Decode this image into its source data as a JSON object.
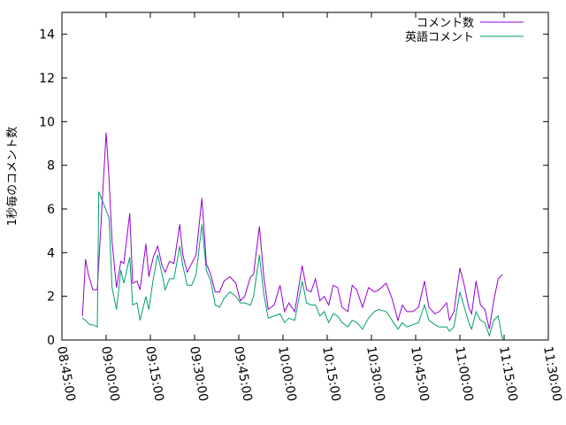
{
  "chart_data": {
    "type": "line",
    "title": "",
    "xlabel": "",
    "ylabel": "1秒毎のコメント数",
    "ylim": [
      0,
      15
    ],
    "xlim": [
      "08:45:00",
      "11:30:00"
    ],
    "grid": false,
    "legend_position": "top-right",
    "y_ticks": [
      "0",
      "2",
      "4",
      "6",
      "8",
      "10",
      "12",
      "14"
    ],
    "x_ticks": [
      "08:45:00",
      "09:00:00",
      "09:15:00",
      "09:30:00",
      "09:45:00",
      "10:00:00",
      "10:15:00",
      "10:30:00",
      "10:45:00",
      "11:00:00",
      "11:15:00",
      "11:30:00"
    ],
    "series": [
      {
        "name": "コメント数",
        "color": "#9400d3",
        "points": [
          [
            "08:52:00",
            1.1
          ],
          [
            "08:53:00",
            3.7
          ],
          [
            "08:54:00",
            3.0
          ],
          [
            "08:55:30",
            2.3
          ],
          [
            "08:57:00",
            2.3
          ],
          [
            "09:00:00",
            9.5
          ],
          [
            "09:01:00",
            7.4
          ],
          [
            "09:02:00",
            4.5
          ],
          [
            "09:03:30",
            2.4
          ],
          [
            "09:05:00",
            3.6
          ],
          [
            "09:06:00",
            3.5
          ],
          [
            "09:08:00",
            5.8
          ],
          [
            "09:09:00",
            2.6
          ],
          [
            "09:10:30",
            2.7
          ],
          [
            "09:11:30",
            2.3
          ],
          [
            "09:13:30",
            4.4
          ],
          [
            "09:14:30",
            2.9
          ],
          [
            "09:16:00",
            3.8
          ],
          [
            "09:17:30",
            4.3
          ],
          [
            "09:19:00",
            3.4
          ],
          [
            "09:20:00",
            3.1
          ],
          [
            "09:21:30",
            3.6
          ],
          [
            "09:23:00",
            3.5
          ],
          [
            "09:25:00",
            5.3
          ],
          [
            "09:26:00",
            3.9
          ],
          [
            "09:27:30",
            3.1
          ],
          [
            "09:29:00",
            3.5
          ],
          [
            "09:30:30",
            3.9
          ],
          [
            "09:32:30",
            6.5
          ],
          [
            "09:34:00",
            3.5
          ],
          [
            "09:35:30",
            3.0
          ],
          [
            "09:37:00",
            2.2
          ],
          [
            "09:38:30",
            2.2
          ],
          [
            "09:40:00",
            2.7
          ],
          [
            "09:42:00",
            2.9
          ],
          [
            "09:44:00",
            2.6
          ],
          [
            "09:45:30",
            1.8
          ],
          [
            "09:47:00",
            2.0
          ],
          [
            "09:49:00",
            2.9
          ],
          [
            "09:50:00",
            3.0
          ],
          [
            "09:52:00",
            5.2
          ],
          [
            "09:53:30",
            2.9
          ],
          [
            "09:55:00",
            1.4
          ],
          [
            "09:57:00",
            1.6
          ],
          [
            "09:59:00",
            2.5
          ],
          [
            "10:00:30",
            1.3
          ],
          [
            "10:02:00",
            1.7
          ],
          [
            "10:04:00",
            1.3
          ],
          [
            "10:06:30",
            3.4
          ],
          [
            "10:08:00",
            2.3
          ],
          [
            "10:09:30",
            2.2
          ],
          [
            "10:11:00",
            2.8
          ],
          [
            "10:12:30",
            1.8
          ],
          [
            "10:14:00",
            2.0
          ],
          [
            "10:15:30",
            1.6
          ],
          [
            "10:17:00",
            2.5
          ],
          [
            "10:18:30",
            2.4
          ],
          [
            "10:20:00",
            1.5
          ],
          [
            "10:22:00",
            1.3
          ],
          [
            "10:23:30",
            2.5
          ],
          [
            "10:25:00",
            2.3
          ],
          [
            "10:27:00",
            1.5
          ],
          [
            "10:29:00",
            2.4
          ],
          [
            "10:31:00",
            2.2
          ],
          [
            "10:32:30",
            2.3
          ],
          [
            "10:35:00",
            2.6
          ],
          [
            "10:37:00",
            1.9
          ],
          [
            "10:39:00",
            0.9
          ],
          [
            "10:40:30",
            1.6
          ],
          [
            "10:42:00",
            1.3
          ],
          [
            "10:44:00",
            1.3
          ],
          [
            "10:46:00",
            1.5
          ],
          [
            "10:48:00",
            2.7
          ],
          [
            "10:49:30",
            1.5
          ],
          [
            "10:51:30",
            1.2
          ],
          [
            "10:53:00",
            1.3
          ],
          [
            "10:55:30",
            1.7
          ],
          [
            "10:56:30",
            0.9
          ],
          [
            "10:58:00",
            1.3
          ],
          [
            "11:00:00",
            3.3
          ],
          [
            "11:01:30",
            2.5
          ],
          [
            "11:03:00",
            1.5
          ],
          [
            "11:04:00",
            1.2
          ],
          [
            "11:05:30",
            2.7
          ],
          [
            "11:07:00",
            1.6
          ],
          [
            "11:08:30",
            1.4
          ],
          [
            "11:10:00",
            0.5
          ],
          [
            "11:11:30",
            1.8
          ],
          [
            "11:13:00",
            2.8
          ],
          [
            "11:14:30",
            3.0
          ]
        ]
      },
      {
        "name": "英語コメント",
        "color": "#009e73",
        "points": [
          [
            "08:52:00",
            1.0
          ],
          [
            "08:53:00",
            0.9
          ],
          [
            "08:54:30",
            0.7
          ],
          [
            "08:55:30",
            0.7
          ],
          [
            "08:57:00",
            0.6
          ],
          [
            "08:57:30",
            6.8
          ],
          [
            "09:01:00",
            5.6
          ],
          [
            "09:02:00",
            2.4
          ],
          [
            "09:03:30",
            1.4
          ],
          [
            "09:05:00",
            3.2
          ],
          [
            "09:06:00",
            2.6
          ],
          [
            "09:08:00",
            3.8
          ],
          [
            "09:09:00",
            1.6
          ],
          [
            "09:10:30",
            1.7
          ],
          [
            "09:11:30",
            0.9
          ],
          [
            "09:13:30",
            2.0
          ],
          [
            "09:14:30",
            1.4
          ],
          [
            "09:16:00",
            2.8
          ],
          [
            "09:17:30",
            3.9
          ],
          [
            "09:19:00",
            3.0
          ],
          [
            "09:20:00",
            2.3
          ],
          [
            "09:21:30",
            2.8
          ],
          [
            "09:23:00",
            2.8
          ],
          [
            "09:25:00",
            4.3
          ],
          [
            "09:26:00",
            3.4
          ],
          [
            "09:27:30",
            2.5
          ],
          [
            "09:29:00",
            2.5
          ],
          [
            "09:30:30",
            3.0
          ],
          [
            "09:32:30",
            5.3
          ],
          [
            "09:34:00",
            3.2
          ],
          [
            "09:35:30",
            2.7
          ],
          [
            "09:37:00",
            1.6
          ],
          [
            "09:38:30",
            1.5
          ],
          [
            "09:40:00",
            1.9
          ],
          [
            "09:42:00",
            2.2
          ],
          [
            "09:44:00",
            2.0
          ],
          [
            "09:45:30",
            1.7
          ],
          [
            "09:47:00",
            1.7
          ],
          [
            "09:49:00",
            1.6
          ],
          [
            "09:50:00",
            2.0
          ],
          [
            "09:52:00",
            3.9
          ],
          [
            "09:53:30",
            2.1
          ],
          [
            "09:55:00",
            1.0
          ],
          [
            "09:57:00",
            1.1
          ],
          [
            "09:59:00",
            1.2
          ],
          [
            "10:00:30",
            0.8
          ],
          [
            "10:02:00",
            1.0
          ],
          [
            "10:04:00",
            0.9
          ],
          [
            "10:06:30",
            2.7
          ],
          [
            "10:08:00",
            1.7
          ],
          [
            "10:09:30",
            1.6
          ],
          [
            "10:11:00",
            1.6
          ],
          [
            "10:12:30",
            1.1
          ],
          [
            "10:14:00",
            1.3
          ],
          [
            "10:15:30",
            0.8
          ],
          [
            "10:17:00",
            1.2
          ],
          [
            "10:18:30",
            1.1
          ],
          [
            "10:20:00",
            0.8
          ],
          [
            "10:22:00",
            0.6
          ],
          [
            "10:23:30",
            0.9
          ],
          [
            "10:25:00",
            0.8
          ],
          [
            "10:27:00",
            0.5
          ],
          [
            "10:29:00",
            1.0
          ],
          [
            "10:31:00",
            1.3
          ],
          [
            "10:32:30",
            1.4
          ],
          [
            "10:35:00",
            1.3
          ],
          [
            "10:37:00",
            0.9
          ],
          [
            "10:39:00",
            0.5
          ],
          [
            "10:40:30",
            0.8
          ],
          [
            "10:42:00",
            0.6
          ],
          [
            "10:44:00",
            0.7
          ],
          [
            "10:46:00",
            0.8
          ],
          [
            "10:48:00",
            1.6
          ],
          [
            "10:49:30",
            0.9
          ],
          [
            "10:51:30",
            0.7
          ],
          [
            "10:53:00",
            0.6
          ],
          [
            "10:55:30",
            0.6
          ],
          [
            "10:56:30",
            0.4
          ],
          [
            "10:58:00",
            0.6
          ],
          [
            "11:00:00",
            2.2
          ],
          [
            "11:01:30",
            1.5
          ],
          [
            "11:03:00",
            0.8
          ],
          [
            "11:04:00",
            0.5
          ],
          [
            "11:05:30",
            1.3
          ],
          [
            "11:07:00",
            0.9
          ],
          [
            "11:08:30",
            0.8
          ],
          [
            "11:10:00",
            0.2
          ],
          [
            "11:11:30",
            0.9
          ],
          [
            "11:13:00",
            1.1
          ],
          [
            "11:14:30",
            0.0
          ]
        ]
      }
    ]
  }
}
